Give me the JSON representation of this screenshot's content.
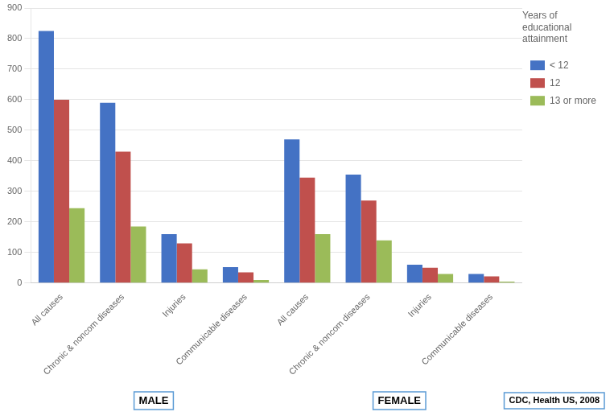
{
  "chart_data": {
    "type": "bar",
    "categories": [
      "All causes",
      "Chronic & noncom diseases",
      "Injuries",
      "Communicable diseases",
      "All causes",
      "Chronic & noncom diseases",
      "Injuries",
      "Communicable diseases"
    ],
    "series": [
      {
        "name": "< 12",
        "color": "#4472C4",
        "values": [
          825,
          590,
          160,
          52,
          470,
          355,
          60,
          30
        ]
      },
      {
        "name": "12",
        "color": "#C0504D",
        "values": [
          600,
          430,
          130,
          35,
          345,
          270,
          50,
          22
        ]
      },
      {
        "name": "13 or more",
        "color": "#9BBB59",
        "values": [
          245,
          185,
          45,
          10,
          160,
          140,
          30,
          5
        ]
      }
    ],
    "ylim": [
      0,
      900
    ],
    "yticks": [
      0,
      100,
      200,
      300,
      400,
      500,
      600,
      700,
      800,
      900
    ],
    "grid": true,
    "legend": "right",
    "legend_title": "Years of  \neducational\nattainment",
    "group_labels": [
      "MALE",
      "FEMALE"
    ],
    "annotations": [
      "CDC, Health US, 2008"
    ]
  }
}
